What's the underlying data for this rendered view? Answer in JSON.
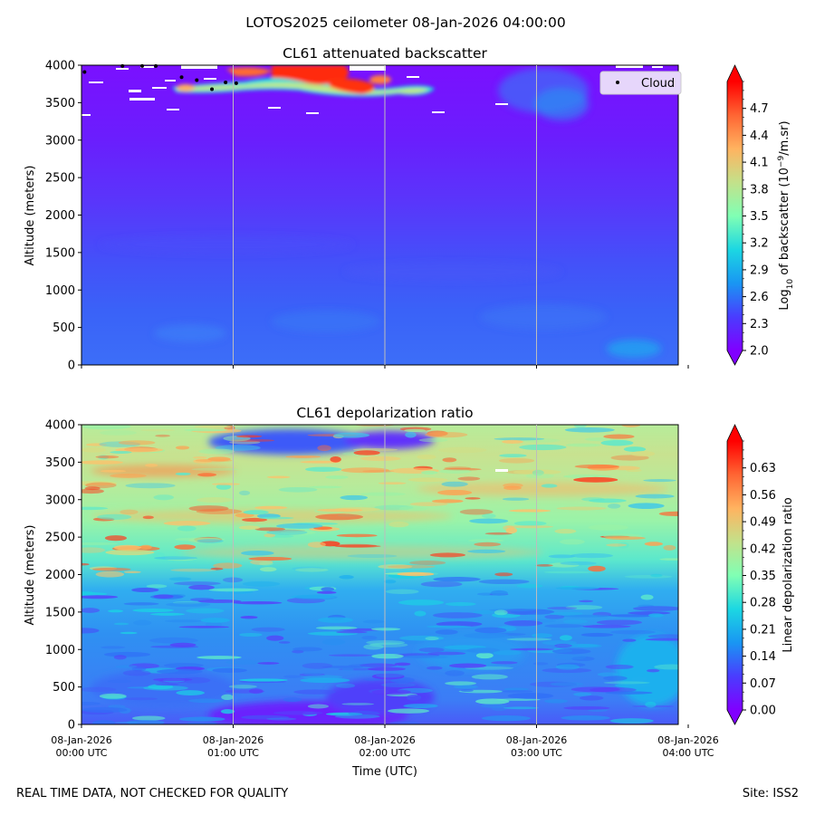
{
  "suptitle": "LOTOS2025 ceilometer 08-Jan-2026 04:00:00",
  "footer": {
    "left": "REAL TIME DATA, NOT CHECKED FOR QUALITY",
    "right": "Site: ISS2"
  },
  "colors": {
    "cloud_marker": "#000000",
    "legend_bg": "#e6d6fb"
  },
  "chart_data": [
    {
      "type": "heatmap",
      "title": "CL61 attenuated backscatter",
      "ylabel": "Altitude (meters)",
      "xlabel": "",
      "ylim": [
        0,
        4000
      ],
      "xlim_hours": [
        0,
        4
      ],
      "yticks": [
        "0",
        "500",
        "1000",
        "1500",
        "2000",
        "2500",
        "3000",
        "3500",
        "4000"
      ],
      "colorbar": {
        "label_prefix": "Log",
        "label_sub": "10",
        "label_mid": " of backscatter (10",
        "label_sup": "−9",
        "label_suffix": "/m.sr)",
        "range": [
          2.0,
          5.0
        ],
        "ticks": [
          "2.0",
          "2.3",
          "2.6",
          "2.9",
          "3.2",
          "3.5",
          "3.8",
          "4.1",
          "4.4",
          "4.7"
        ],
        "colormap": "rainbow"
      },
      "legend": {
        "label": "Cloud",
        "position": "top-right"
      },
      "cloud_points": [
        {
          "t": 0.02,
          "alt": 3910
        },
        {
          "t": 0.27,
          "alt": 3990
        },
        {
          "t": 0.4,
          "alt": 3990
        },
        {
          "t": 0.49,
          "alt": 3990
        },
        {
          "t": 0.66,
          "alt": 3840
        },
        {
          "t": 0.76,
          "alt": 3800
        },
        {
          "t": 0.86,
          "alt": 3680
        },
        {
          "t": 0.95,
          "alt": 3770
        },
        {
          "t": 1.02,
          "alt": 3760
        }
      ]
    },
    {
      "type": "heatmap",
      "title": "CL61 depolarization ratio",
      "ylabel": "Altitude (meters)",
      "xlabel": "Time (UTC)",
      "ylim": [
        0,
        4000
      ],
      "xlim_hours": [
        0,
        4
      ],
      "yticks": [
        "0",
        "500",
        "1000",
        "1500",
        "2000",
        "2500",
        "3000",
        "3500",
        "4000"
      ],
      "xticks": [
        {
          "date": "08-Jan-2026",
          "time": "00:00 UTC"
        },
        {
          "date": "08-Jan-2026",
          "time": "01:00 UTC"
        },
        {
          "date": "08-Jan-2026",
          "time": "02:00 UTC"
        },
        {
          "date": "08-Jan-2026",
          "time": "03:00 UTC"
        },
        {
          "date": "08-Jan-2026",
          "time": "04:00 UTC"
        }
      ],
      "colorbar": {
        "label": "Linear depolarization ratio",
        "range": [
          0.0,
          0.7
        ],
        "ticks": [
          "0.00",
          "0.07",
          "0.14",
          "0.21",
          "0.28",
          "0.35",
          "0.42",
          "0.49",
          "0.56",
          "0.63"
        ],
        "colormap": "rainbow"
      }
    }
  ]
}
